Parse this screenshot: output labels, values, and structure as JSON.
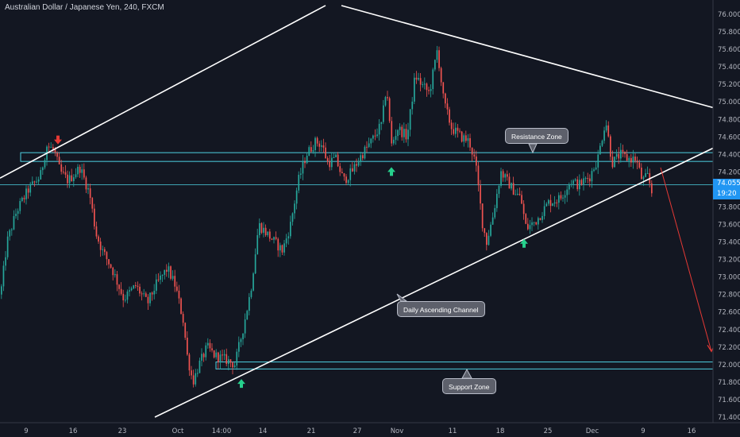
{
  "header": {
    "title": "Australian Dollar / Japanese Yen, 240, FXCM"
  },
  "colors": {
    "background": "#131722",
    "up": "#26a69a",
    "down": "#ef5350",
    "line": "#ffffff",
    "zone": "#4dd0e1",
    "arrow_up": "#26d08c",
    "arrow_down": "#e53935"
  },
  "price_badge": {
    "price": "74.055",
    "countdown": "19:20"
  },
  "annotations": {
    "resistance": "Resistance Zone",
    "channel": "Daily Ascending Channel",
    "support": "Support Zone"
  },
  "icons": {
    "up": "arrow-up-icon",
    "down": "arrow-down-icon"
  },
  "chart_data": {
    "type": "candlestick",
    "title": "Australian Dollar / Japanese Yen, 240, FXCM",
    "ylim": [
      71.4,
      76.1
    ],
    "y_ticks": [
      "76.000",
      "75.800",
      "75.600",
      "75.400",
      "75.200",
      "75.000",
      "74.800",
      "74.600",
      "74.400",
      "74.200",
      "74.000",
      "73.800",
      "73.600",
      "73.400",
      "73.200",
      "73.000",
      "72.800",
      "72.600",
      "72.400",
      "72.200",
      "72.000",
      "71.800",
      "71.600",
      "71.400"
    ],
    "x_ticks": [
      "9",
      "16",
      "23",
      "Oct",
      "14:00",
      "14",
      "21",
      "27",
      "Nov",
      "11",
      "18",
      "25",
      "Dec",
      "9",
      "16"
    ],
    "path_anchors": [
      [
        0,
        72.8
      ],
      [
        8,
        73.4
      ],
      [
        20,
        73.75
      ],
      [
        35,
        74.0
      ],
      [
        50,
        74.15
      ],
      [
        58,
        74.5
      ],
      [
        67,
        74.45
      ],
      [
        75,
        74.2
      ],
      [
        85,
        74.1
      ],
      [
        100,
        74.25
      ],
      [
        112,
        73.95
      ],
      [
        120,
        73.5
      ],
      [
        128,
        73.3
      ],
      [
        140,
        73.1
      ],
      [
        155,
        72.75
      ],
      [
        170,
        72.9
      ],
      [
        185,
        72.7
      ],
      [
        195,
        72.9
      ],
      [
        210,
        73.1
      ],
      [
        220,
        72.9
      ],
      [
        230,
        72.5
      ],
      [
        235,
        72.1
      ],
      [
        242,
        71.8
      ],
      [
        250,
        72.0
      ],
      [
        260,
        72.2
      ],
      [
        270,
        72.1
      ],
      [
        285,
        72.05
      ],
      [
        295,
        72.0
      ],
      [
        305,
        72.4
      ],
      [
        315,
        72.85
      ],
      [
        325,
        73.6
      ],
      [
        335,
        73.5
      ],
      [
        345,
        73.4
      ],
      [
        355,
        73.3
      ],
      [
        365,
        73.6
      ],
      [
        375,
        74.1
      ],
      [
        385,
        74.4
      ],
      [
        397,
        74.55
      ],
      [
        405,
        74.5
      ],
      [
        412,
        74.3
      ],
      [
        422,
        74.35
      ],
      [
        432,
        74.1
      ],
      [
        442,
        74.2
      ],
      [
        455,
        74.4
      ],
      [
        467,
        74.55
      ],
      [
        480,
        74.75
      ],
      [
        486,
        75.2
      ],
      [
        492,
        74.5
      ],
      [
        500,
        74.7
      ],
      [
        512,
        74.6
      ],
      [
        522,
        75.3
      ],
      [
        530,
        75.2
      ],
      [
        540,
        75.1
      ],
      [
        550,
        75.6
      ],
      [
        558,
        75.0
      ],
      [
        568,
        74.7
      ],
      [
        580,
        74.6
      ],
      [
        590,
        74.55
      ],
      [
        598,
        74.3
      ],
      [
        607,
        73.6
      ],
      [
        612,
        73.4
      ],
      [
        620,
        73.7
      ],
      [
        630,
        74.2
      ],
      [
        645,
        74.0
      ],
      [
        655,
        73.9
      ],
      [
        662,
        73.55
      ],
      [
        675,
        73.65
      ],
      [
        690,
        73.85
      ],
      [
        705,
        73.9
      ],
      [
        718,
        74.1
      ],
      [
        728,
        74.05
      ],
      [
        742,
        74.15
      ],
      [
        752,
        74.35
      ],
      [
        762,
        74.8
      ],
      [
        770,
        74.3
      ],
      [
        780,
        74.4
      ],
      [
        790,
        74.35
      ],
      [
        800,
        74.35
      ],
      [
        808,
        74.1
      ],
      [
        815,
        74.15
      ],
      [
        822,
        73.9
      ]
    ],
    "resistance_zone": [
      74.32,
      74.42
    ],
    "support_zone": [
      71.95,
      72.03
    ],
    "last_price_line": 74.055,
    "lines": [
      {
        "label": "Daily Ascending Channel",
        "from": [
          195,
          71.4
        ],
        "to": [
          932,
          74.62
        ]
      },
      {
        "label": "upper-channel",
        "from": [
          0,
          74.13
        ],
        "to": [
          410,
          76.1
        ]
      },
      {
        "label": "descending-trendline",
        "from": [
          430,
          76.1
        ],
        "to": [
          932,
          74.85
        ]
      },
      {
        "label": "projection",
        "from": [
          832,
          74.25
        ],
        "to": [
          896,
          72.15
        ]
      }
    ],
    "markers": [
      {
        "type": "down",
        "x": 73,
        "price": 74.57
      },
      {
        "type": "up",
        "x": 493,
        "price": 74.2
      },
      {
        "type": "up",
        "x": 660,
        "price": 73.38
      },
      {
        "type": "up",
        "x": 304,
        "price": 71.78
      }
    ]
  }
}
